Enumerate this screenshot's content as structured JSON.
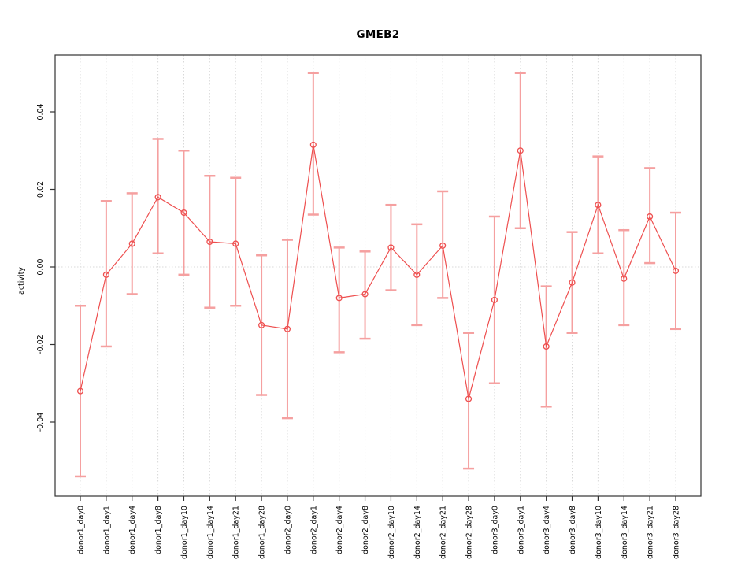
{
  "chart_data": {
    "type": "line",
    "subtype": "points-with-error-bars",
    "title": "GMEB2",
    "xlabel": "",
    "ylabel": "activity",
    "legend": "none",
    "grid": "vertical dotted gridline at each category; dotted horizontal line at y=0",
    "y_ticks": [
      -0.04,
      -0.02,
      0,
      0.02,
      0.04
    ],
    "y_tick_labels": [
      "-0.04",
      "-0.02",
      "0.00",
      "0.02",
      "0.04"
    ],
    "ylim": [
      -0.059,
      0.055
    ],
    "categories": [
      "donor1_day0",
      "donor1_day1",
      "donor1_day4",
      "donor1_day8",
      "donor1_day10",
      "donor1_day14",
      "donor1_day21",
      "donor1_day28",
      "donor2_day0",
      "donor2_day1",
      "donor2_day4",
      "donor2_day8",
      "donor2_day10",
      "donor2_day14",
      "donor2_day21",
      "donor2_day28",
      "donor3_day0",
      "donor3_day1",
      "donor3_day4",
      "donor3_day8",
      "donor3_day10",
      "donor3_day14",
      "donor3_day21",
      "donor3_day28"
    ],
    "series": [
      {
        "name": "activity",
        "marker": "open-circle",
        "values": [
          -0.032,
          -0.002,
          0.006,
          0.018,
          0.014,
          0.0065,
          0.006,
          -0.015,
          -0.016,
          0.0315,
          -0.008,
          -0.007,
          0.005,
          -0.002,
          0.0055,
          -0.034,
          -0.0085,
          0.03,
          -0.0205,
          -0.004,
          0.016,
          -0.003,
          0.013,
          -0.001
        ],
        "error_upper": [
          -0.01,
          0.017,
          0.019,
          0.033,
          0.03,
          0.0235,
          0.023,
          0.003,
          0.007,
          0.05,
          0.005,
          0.004,
          0.016,
          0.011,
          0.0195,
          -0.017,
          0.013,
          0.05,
          -0.005,
          0.009,
          0.0285,
          0.0095,
          0.0255,
          0.014
        ],
        "error_lower": [
          -0.054,
          -0.0205,
          -0.007,
          0.0035,
          -0.002,
          -0.0105,
          -0.01,
          -0.033,
          -0.039,
          0.0135,
          -0.022,
          -0.0185,
          -0.006,
          -0.015,
          -0.008,
          -0.052,
          -0.03,
          0.01,
          -0.036,
          -0.017,
          0.0035,
          -0.015,
          0.001,
          -0.016
        ]
      }
    ],
    "colors": {
      "series": "#ee4f4f",
      "error_bar": "#f5a0a0",
      "grid": "#d8d8d8",
      "axis": "#333333",
      "text": "#000000",
      "background": "#ffffff"
    }
  }
}
